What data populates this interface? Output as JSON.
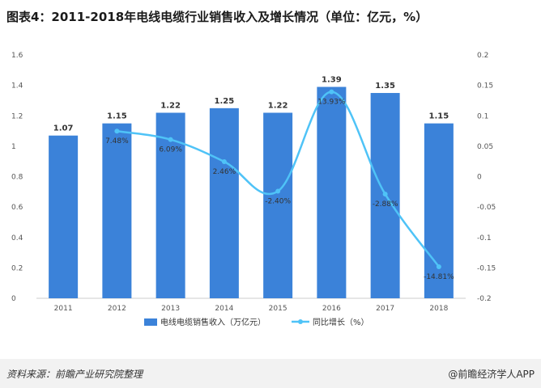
{
  "title": "图表4：2011-2018年电线电缆行业销售收入及增长情况（单位：亿元，%）",
  "footer": {
    "source": "资料来源：前瞻产业研究院整理",
    "credit": "@前瞻经济学人APP"
  },
  "colors": {
    "bar": "#3b82d9",
    "line": "#4fc3f7",
    "axis_text": "#555555",
    "grid": "#e6e6e6"
  },
  "chart_data": {
    "type": "bar",
    "categories": [
      "2011",
      "2012",
      "2013",
      "2014",
      "2015",
      "2016",
      "2017",
      "2018"
    ],
    "series": [
      {
        "name": "电线电缆销售收入（万亿元）",
        "type": "bar",
        "axis": "left",
        "values": [
          1.07,
          1.15,
          1.22,
          1.25,
          1.22,
          1.39,
          1.35,
          1.15
        ],
        "labels": [
          "1.07",
          "1.15",
          "1.22",
          "1.25",
          "1.22",
          "1.39",
          "1.35",
          "1.15"
        ]
      },
      {
        "name": "同比增长（%）",
        "type": "line",
        "axis": "right",
        "values": [
          null,
          0.0748,
          0.0609,
          0.0246,
          -0.024,
          0.1393,
          -0.0288,
          -0.1481
        ],
        "labels": [
          "",
          "7.48%",
          "6.09%",
          "2.46%",
          "-2.40%",
          "13.93%",
          "-2.88%",
          "-14.81%"
        ]
      }
    ],
    "y_left": {
      "ylim": [
        0,
        1.6
      ],
      "ticks": [
        "0",
        "0.2",
        "0.4",
        "0.6",
        "0.8",
        "1",
        "1.2",
        "1.4",
        "1.6"
      ]
    },
    "y_right": {
      "ylim": [
        -0.2,
        0.2
      ],
      "ticks": [
        "-0.2",
        "-0.15",
        "-0.1",
        "-0.05",
        "0",
        "0.05",
        "0.1",
        "0.15",
        "0.2"
      ]
    },
    "legend_position": "bottom",
    "grid": false
  }
}
